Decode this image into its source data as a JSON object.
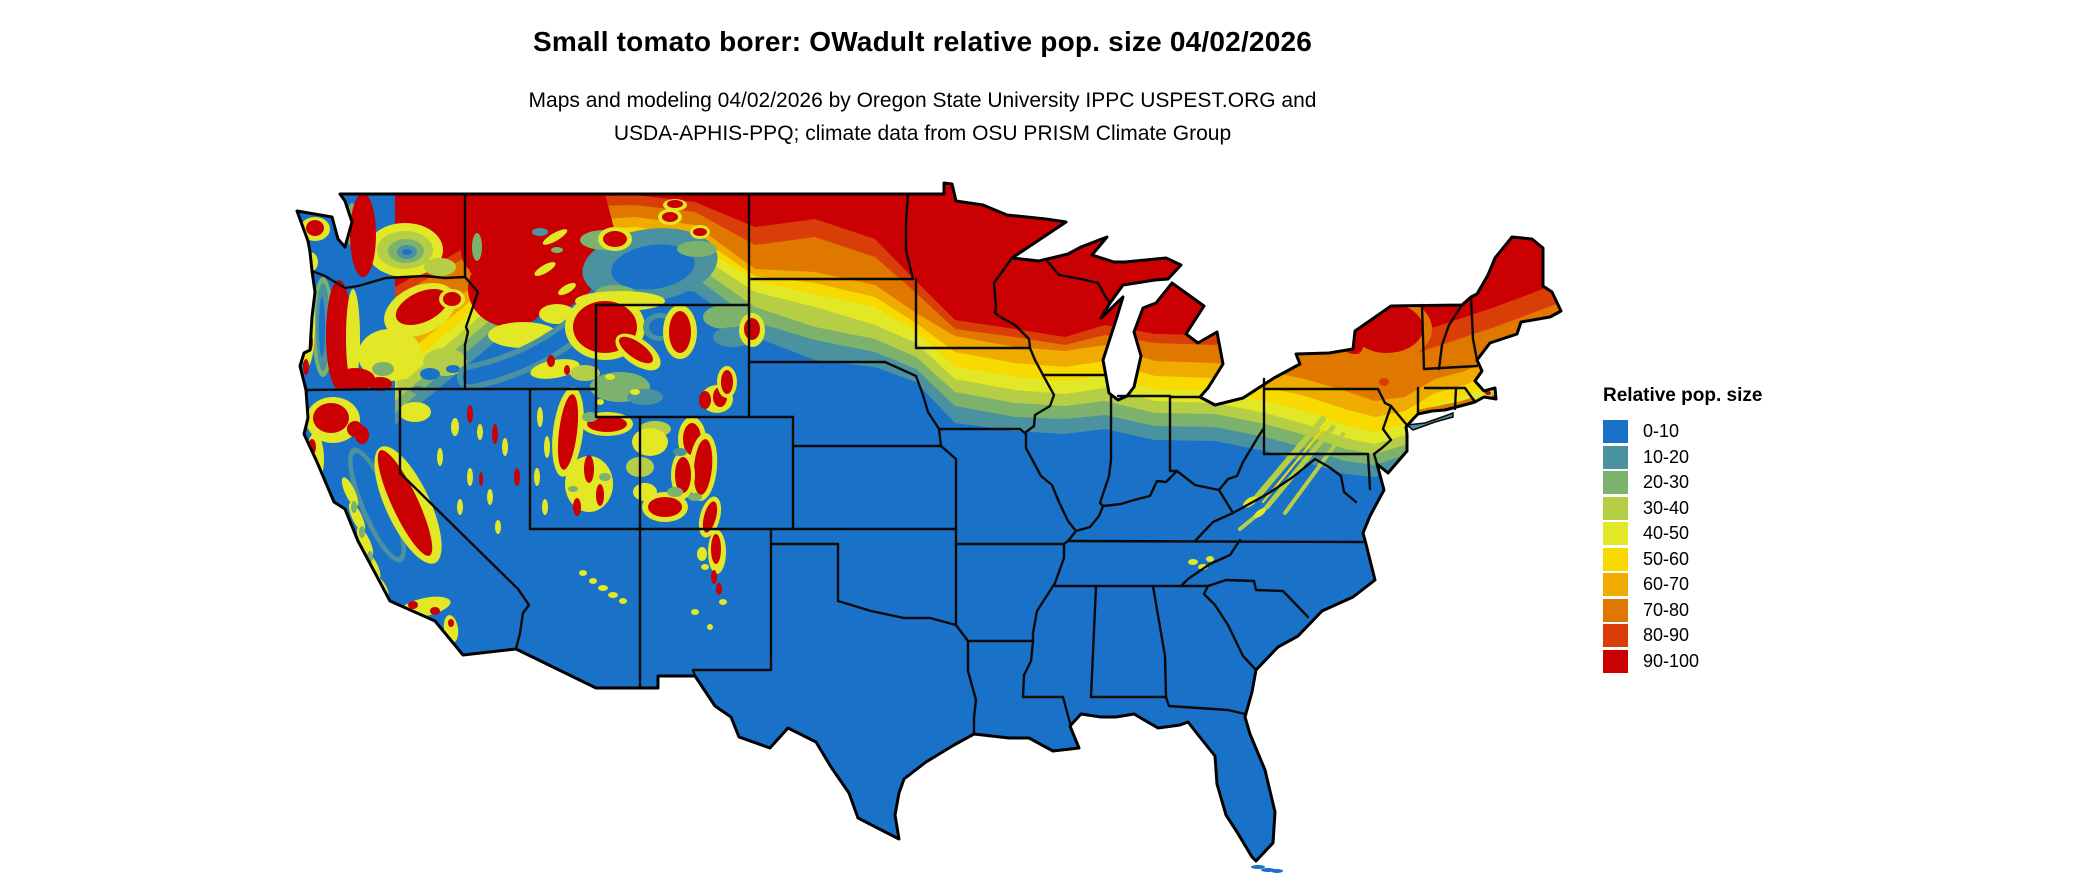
{
  "header": {
    "title": "Small tomato borer: OWadult relative pop. size 04/02/2026",
    "subtitle_line1": "Maps and modeling 04/02/2026 by Oregon State University IPPC USPEST.ORG and",
    "subtitle_line2": "USDA-APHIS-PPQ; climate data from OSU PRISM Climate Group"
  },
  "legend": {
    "title": "Relative pop. size",
    "items": [
      {
        "label": "0-10",
        "color": "#1A72C8"
      },
      {
        "label": "10-20",
        "color": "#4B92A0"
      },
      {
        "label": "20-30",
        "color": "#7CB26C"
      },
      {
        "label": "30-40",
        "color": "#B5CE45"
      },
      {
        "label": "40-50",
        "color": "#E2E726"
      },
      {
        "label": "50-60",
        "color": "#F8D900"
      },
      {
        "label": "60-70",
        "color": "#F0AB00"
      },
      {
        "label": "70-80",
        "color": "#E07800"
      },
      {
        "label": "80-90",
        "color": "#D93D08"
      },
      {
        "label": "90-100",
        "color": "#CB0002"
      }
    ]
  },
  "map": {
    "area": "Contiguous United States",
    "north_high_south_low": "relative population size decreases from north (90-100) to south (0-10)"
  }
}
